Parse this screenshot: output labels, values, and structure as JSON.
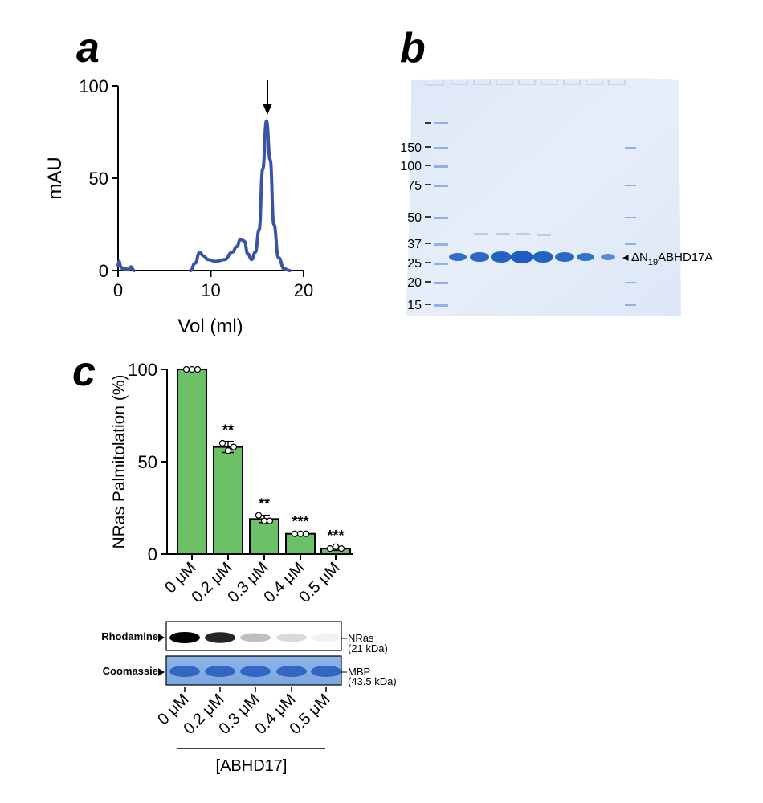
{
  "panels": {
    "a": "a",
    "b": "b",
    "c": "c"
  },
  "chart_data": [
    {
      "type": "line",
      "panel": "a",
      "xlabel": "Vol (ml)",
      "ylabel": "mAU",
      "xlim": [
        0,
        20
      ],
      "ylim": [
        0,
        100
      ],
      "xticks": [
        "0",
        "10",
        "20"
      ],
      "yticks": [
        "0",
        "50",
        "100"
      ],
      "line_color": "#3a53a4",
      "x": [
        0,
        0.1,
        0.3,
        0.5,
        0.8,
        1.1,
        1.4,
        1.7,
        7.8,
        8.3,
        8.8,
        9.2,
        9.7,
        10.5,
        11.5,
        12.3,
        12.8,
        13.2,
        13.6,
        14.0,
        14.4,
        14.8,
        15.2,
        15.6,
        16.0,
        16.4,
        16.8,
        17.3,
        17.9,
        18.5
      ],
      "y": [
        3,
        5,
        2,
        1,
        1,
        0.5,
        2,
        0,
        0,
        4,
        10,
        8,
        6,
        5,
        6,
        10,
        13,
        17,
        16,
        9,
        6,
        10,
        22,
        55,
        81,
        60,
        25,
        7,
        1,
        0
      ],
      "annotation": "arrow at peak (16.0 ml)"
    },
    {
      "type": "bar",
      "panel": "c",
      "ylabel": "NRas Palmitolation (%)",
      "ylim": [
        0,
        100
      ],
      "yticks": [
        "0",
        "50",
        "100"
      ],
      "categories": [
        "0 μM",
        "0.2 μM",
        "0.3 μM",
        "0.4 μM",
        "0.5 μM"
      ],
      "values": [
        100,
        58,
        19,
        11,
        3
      ],
      "errors": [
        0,
        3,
        2,
        0.5,
        1
      ],
      "points": [
        [
          100,
          100,
          100
        ],
        [
          60,
          56,
          58
        ],
        [
          21,
          18,
          18
        ],
        [
          11,
          11,
          11
        ],
        [
          3,
          4,
          3
        ]
      ],
      "significance": [
        "",
        "**",
        "**",
        "***",
        "***"
      ],
      "bar_color": "#6cc066"
    }
  ],
  "gel_b": {
    "markers": [
      "150",
      "100",
      "75",
      "50",
      "37",
      "25",
      "20",
      "15"
    ],
    "band_label_prefix": "ΔN",
    "band_label_sub": "19",
    "band_label_suffix": "ABHD17A",
    "band_arrow": "◂"
  },
  "blot_c": {
    "row1_label": "Rhodamine",
    "row2_label": "Coomassie",
    "row1_right": "NRas",
    "row1_right_sub": "(21 kDa)",
    "row2_right": "MBP",
    "row2_right_sub": "(43.5 kDa)",
    "row1_intensity": [
      1.0,
      0.85,
      0.25,
      0.15,
      0.05
    ],
    "lane_labels": [
      "0 μM",
      "0.2 μM",
      "0.3 μM",
      "0.4 μM",
      "0.5 μM"
    ],
    "group_label": "[ABHD17]"
  }
}
